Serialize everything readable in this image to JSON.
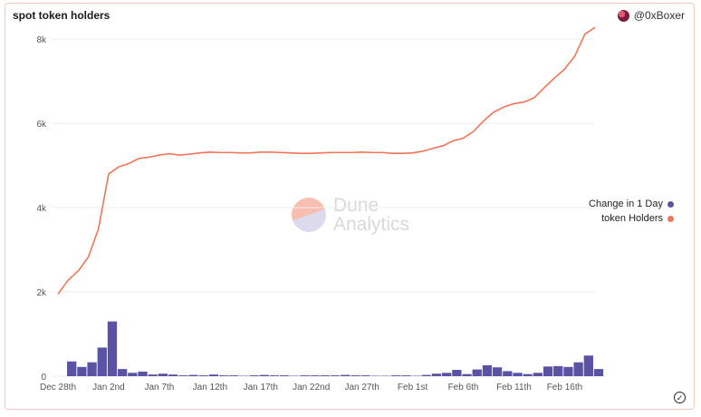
{
  "header": {
    "title": "spot token holders",
    "author": "@0xBoxer"
  },
  "watermark": {
    "line1": "Dune",
    "line2": "Analytics"
  },
  "legend": [
    {
      "label": "Change in 1 Day",
      "color": "#5a52a3"
    },
    {
      "label": "token Holders",
      "color": "#f27457"
    }
  ],
  "colors": {
    "line": "#f27457",
    "bar": "#5a52a3",
    "grid": "#eeeeee",
    "text": "#555555"
  },
  "chart_data": {
    "type": "bar+line",
    "title": "spot token holders",
    "ylim": [
      0,
      8500
    ],
    "y_ticks": [
      0,
      2000,
      4000,
      6000,
      8000
    ],
    "y_tick_labels": [
      "0",
      "2k",
      "4k",
      "6k",
      "8k"
    ],
    "x_tick_labels": [
      "Dec 28th",
      "Jan 2nd",
      "Jan 7th",
      "Jan 12th",
      "Jan 17th",
      "Jan 22nd",
      "Jan 27th",
      "Feb 1st",
      "Feb 6th",
      "Feb 11th",
      "Feb 16th"
    ],
    "x_tick_day_index": [
      0,
      5,
      10,
      15,
      20,
      25,
      30,
      35,
      40,
      45,
      50
    ],
    "series": [
      {
        "name": "Change in 1 Day",
        "kind": "bar",
        "values": [
          0,
          350,
          220,
          330,
          680,
          1300,
          170,
          80,
          110,
          40,
          60,
          40,
          20,
          30,
          20,
          40,
          20,
          20,
          10,
          20,
          30,
          20,
          20,
          10,
          20,
          20,
          20,
          20,
          30,
          20,
          20,
          10,
          10,
          20,
          20,
          10,
          30,
          60,
          80,
          150,
          50,
          160,
          260,
          210,
          120,
          80,
          50,
          80,
          230,
          240,
          220,
          330,
          490,
          170
        ]
      },
      {
        "name": "token Holders",
        "kind": "line",
        "values": [
          1950,
          2280,
          2500,
          2830,
          3500,
          4800,
          4970,
          5050,
          5170,
          5200,
          5250,
          5280,
          5250,
          5270,
          5300,
          5320,
          5310,
          5310,
          5300,
          5300,
          5320,
          5320,
          5310,
          5300,
          5290,
          5290,
          5300,
          5310,
          5310,
          5310,
          5320,
          5310,
          5310,
          5290,
          5290,
          5300,
          5340,
          5410,
          5470,
          5590,
          5650,
          5810,
          6060,
          6270,
          6390,
          6470,
          6510,
          6610,
          6850,
          7080,
          7290,
          7600,
          8120,
          8280
        ]
      }
    ]
  }
}
